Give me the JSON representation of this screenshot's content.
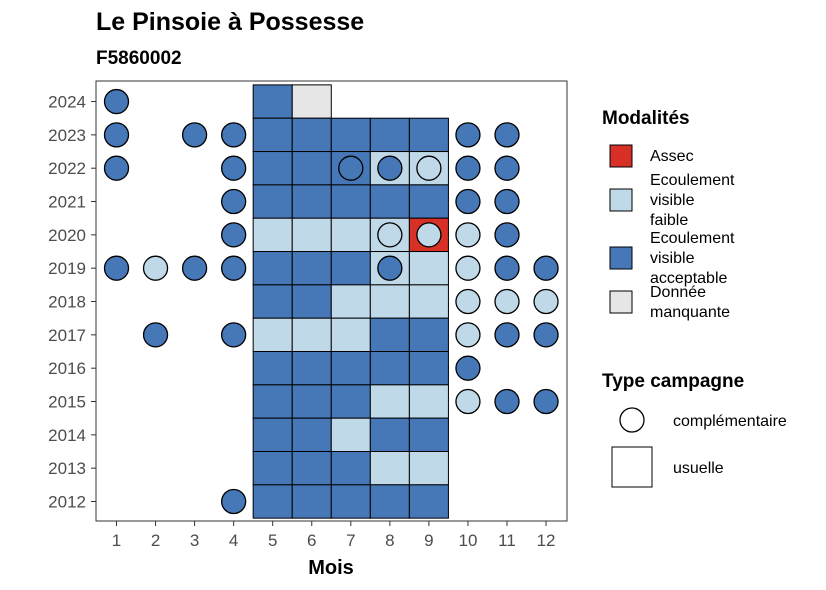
{
  "chart_data": {
    "type": "heatmap",
    "title": "Le Pinsoie à Possesse",
    "subtitle": "F5860002",
    "xlabel": "Mois",
    "ylabel": "",
    "x_ticks": [
      "1",
      "2",
      "3",
      "4",
      "5",
      "6",
      "7",
      "8",
      "9",
      "10",
      "11",
      "12"
    ],
    "y_ticks": [
      "2012",
      "2013",
      "2014",
      "2015",
      "2016",
      "2017",
      "2018",
      "2019",
      "2020",
      "2021",
      "2022",
      "2023",
      "2024"
    ],
    "colors": {
      "assec": "#d73027",
      "faible": "#c0d9e8",
      "acceptable": "#4677b6",
      "manquante": "#e6e6e6"
    },
    "legend_modalites": {
      "title": "Modalités",
      "items": [
        {
          "key": "assec",
          "lines": [
            "Assec"
          ]
        },
        {
          "key": "faible",
          "lines": [
            "Ecoulement",
            "visible",
            "faible"
          ]
        },
        {
          "key": "acceptable",
          "lines": [
            "Ecoulement",
            "visible",
            "acceptable"
          ]
        },
        {
          "key": "manquante",
          "lines": [
            "Donnée",
            "manquante"
          ]
        }
      ]
    },
    "legend_campagne": {
      "title": "Type campagne",
      "items": [
        {
          "shape": "circle",
          "label": "complémentaire"
        },
        {
          "shape": "square",
          "label": "usuelle"
        }
      ]
    },
    "usuelle": [
      {
        "year": 2024,
        "month": 5,
        "state": "acceptable"
      },
      {
        "year": 2024,
        "month": 6,
        "state": "manquante"
      },
      {
        "year": 2023,
        "month": 5,
        "state": "acceptable"
      },
      {
        "year": 2023,
        "month": 6,
        "state": "acceptable"
      },
      {
        "year": 2023,
        "month": 7,
        "state": "acceptable"
      },
      {
        "year": 2023,
        "month": 8,
        "state": "acceptable"
      },
      {
        "year": 2023,
        "month": 9,
        "state": "acceptable"
      },
      {
        "year": 2022,
        "month": 5,
        "state": "acceptable"
      },
      {
        "year": 2022,
        "month": 6,
        "state": "acceptable"
      },
      {
        "year": 2022,
        "month": 7,
        "state": "acceptable"
      },
      {
        "year": 2022,
        "month": 8,
        "state": "faible"
      },
      {
        "year": 2022,
        "month": 9,
        "state": "faible"
      },
      {
        "year": 2021,
        "month": 5,
        "state": "acceptable"
      },
      {
        "year": 2021,
        "month": 6,
        "state": "acceptable"
      },
      {
        "year": 2021,
        "month": 7,
        "state": "acceptable"
      },
      {
        "year": 2021,
        "month": 8,
        "state": "acceptable"
      },
      {
        "year": 2021,
        "month": 9,
        "state": "acceptable"
      },
      {
        "year": 2020,
        "month": 5,
        "state": "faible"
      },
      {
        "year": 2020,
        "month": 6,
        "state": "faible"
      },
      {
        "year": 2020,
        "month": 7,
        "state": "faible"
      },
      {
        "year": 2020,
        "month": 8,
        "state": "faible"
      },
      {
        "year": 2020,
        "month": 9,
        "state": "assec"
      },
      {
        "year": 2019,
        "month": 5,
        "state": "acceptable"
      },
      {
        "year": 2019,
        "month": 6,
        "state": "acceptable"
      },
      {
        "year": 2019,
        "month": 7,
        "state": "acceptable"
      },
      {
        "year": 2019,
        "month": 8,
        "state": "faible"
      },
      {
        "year": 2019,
        "month": 9,
        "state": "faible"
      },
      {
        "year": 2018,
        "month": 5,
        "state": "acceptable"
      },
      {
        "year": 2018,
        "month": 6,
        "state": "acceptable"
      },
      {
        "year": 2018,
        "month": 7,
        "state": "faible"
      },
      {
        "year": 2018,
        "month": 8,
        "state": "faible"
      },
      {
        "year": 2018,
        "month": 9,
        "state": "faible"
      },
      {
        "year": 2017,
        "month": 5,
        "state": "faible"
      },
      {
        "year": 2017,
        "month": 6,
        "state": "faible"
      },
      {
        "year": 2017,
        "month": 7,
        "state": "faible"
      },
      {
        "year": 2017,
        "month": 8,
        "state": "acceptable"
      },
      {
        "year": 2017,
        "month": 9,
        "state": "acceptable"
      },
      {
        "year": 2016,
        "month": 5,
        "state": "acceptable"
      },
      {
        "year": 2016,
        "month": 6,
        "state": "acceptable"
      },
      {
        "year": 2016,
        "month": 7,
        "state": "acceptable"
      },
      {
        "year": 2016,
        "month": 8,
        "state": "acceptable"
      },
      {
        "year": 2016,
        "month": 9,
        "state": "acceptable"
      },
      {
        "year": 2015,
        "month": 5,
        "state": "acceptable"
      },
      {
        "year": 2015,
        "month": 6,
        "state": "acceptable"
      },
      {
        "year": 2015,
        "month": 7,
        "state": "acceptable"
      },
      {
        "year": 2015,
        "month": 8,
        "state": "faible"
      },
      {
        "year": 2015,
        "month": 9,
        "state": "faible"
      },
      {
        "year": 2014,
        "month": 5,
        "state": "acceptable"
      },
      {
        "year": 2014,
        "month": 6,
        "state": "acceptable"
      },
      {
        "year": 2014,
        "month": 7,
        "state": "faible"
      },
      {
        "year": 2014,
        "month": 8,
        "state": "acceptable"
      },
      {
        "year": 2014,
        "month": 9,
        "state": "acceptable"
      },
      {
        "year": 2013,
        "month": 5,
        "state": "acceptable"
      },
      {
        "year": 2013,
        "month": 6,
        "state": "acceptable"
      },
      {
        "year": 2013,
        "month": 7,
        "state": "acceptable"
      },
      {
        "year": 2013,
        "month": 8,
        "state": "faible"
      },
      {
        "year": 2013,
        "month": 9,
        "state": "faible"
      },
      {
        "year": 2012,
        "month": 5,
        "state": "acceptable"
      },
      {
        "year": 2012,
        "month": 6,
        "state": "acceptable"
      },
      {
        "year": 2012,
        "month": 7,
        "state": "acceptable"
      },
      {
        "year": 2012,
        "month": 8,
        "state": "acceptable"
      },
      {
        "year": 2012,
        "month": 9,
        "state": "acceptable"
      }
    ],
    "complementaire": [
      {
        "year": 2024,
        "month": 1,
        "state": "acceptable"
      },
      {
        "year": 2023,
        "month": 1,
        "state": "acceptable"
      },
      {
        "year": 2023,
        "month": 3,
        "state": "acceptable"
      },
      {
        "year": 2023,
        "month": 4,
        "state": "acceptable"
      },
      {
        "year": 2023,
        "month": 10,
        "state": "acceptable"
      },
      {
        "year": 2023,
        "month": 11,
        "state": "acceptable"
      },
      {
        "year": 2022,
        "month": 1,
        "state": "acceptable"
      },
      {
        "year": 2022,
        "month": 4,
        "state": "acceptable"
      },
      {
        "year": 2022,
        "month": 7,
        "state": "acceptable"
      },
      {
        "year": 2022,
        "month": 8,
        "state": "acceptable"
      },
      {
        "year": 2022,
        "month": 9,
        "state": "faible"
      },
      {
        "year": 2022,
        "month": 10,
        "state": "acceptable"
      },
      {
        "year": 2022,
        "month": 11,
        "state": "acceptable"
      },
      {
        "year": 2021,
        "month": 4,
        "state": "acceptable"
      },
      {
        "year": 2021,
        "month": 10,
        "state": "acceptable"
      },
      {
        "year": 2021,
        "month": 11,
        "state": "acceptable"
      },
      {
        "year": 2020,
        "month": 4,
        "state": "acceptable"
      },
      {
        "year": 2020,
        "month": 8,
        "state": "faible"
      },
      {
        "year": 2020,
        "month": 9,
        "state": "faible"
      },
      {
        "year": 2020,
        "month": 10,
        "state": "faible"
      },
      {
        "year": 2020,
        "month": 11,
        "state": "acceptable"
      },
      {
        "year": 2019,
        "month": 1,
        "state": "acceptable"
      },
      {
        "year": 2019,
        "month": 2,
        "state": "faible"
      },
      {
        "year": 2019,
        "month": 3,
        "state": "acceptable"
      },
      {
        "year": 2019,
        "month": 4,
        "state": "acceptable"
      },
      {
        "year": 2019,
        "month": 8,
        "state": "acceptable"
      },
      {
        "year": 2019,
        "month": 10,
        "state": "faible"
      },
      {
        "year": 2019,
        "month": 11,
        "state": "acceptable"
      },
      {
        "year": 2019,
        "month": 12,
        "state": "acceptable"
      },
      {
        "year": 2018,
        "month": 10,
        "state": "faible"
      },
      {
        "year": 2018,
        "month": 11,
        "state": "faible"
      },
      {
        "year": 2018,
        "month": 12,
        "state": "faible"
      },
      {
        "year": 2017,
        "month": 2,
        "state": "acceptable"
      },
      {
        "year": 2017,
        "month": 4,
        "state": "acceptable"
      },
      {
        "year": 2017,
        "month": 10,
        "state": "faible"
      },
      {
        "year": 2017,
        "month": 11,
        "state": "acceptable"
      },
      {
        "year": 2017,
        "month": 12,
        "state": "acceptable"
      },
      {
        "year": 2016,
        "month": 10,
        "state": "acceptable"
      },
      {
        "year": 2015,
        "month": 10,
        "state": "faible"
      },
      {
        "year": 2015,
        "month": 11,
        "state": "acceptable"
      },
      {
        "year": 2015,
        "month": 12,
        "state": "acceptable"
      },
      {
        "year": 2012,
        "month": 4,
        "state": "acceptable"
      }
    ]
  }
}
